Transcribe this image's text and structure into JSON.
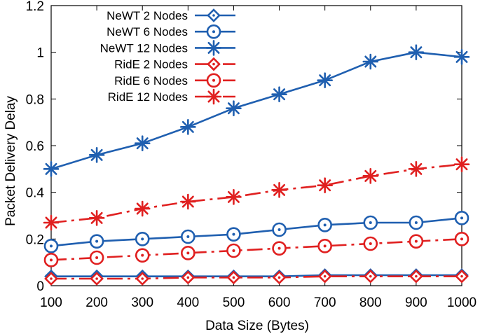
{
  "chart_data": {
    "type": "line",
    "xlabel": "Data Size (Bytes)",
    "ylabel": "Packet Delivery Delay",
    "xlim": [
      100,
      1000
    ],
    "ylim": [
      0,
      1.2
    ],
    "x": [
      100,
      200,
      300,
      400,
      500,
      600,
      700,
      800,
      900,
      1000
    ],
    "xticks": [
      "100",
      "200",
      "300",
      "400",
      "500",
      "600",
      "700",
      "800",
      "900",
      "1000"
    ],
    "yticks": [
      "0",
      "0.2",
      "0.4",
      "0.6",
      "0.8",
      "1",
      "1.2"
    ],
    "legend_position": "top-left",
    "grid": false,
    "series": [
      {
        "name": "NeWT 2 Nodes",
        "color": "#1f5fb0",
        "marker": "diamond-dot",
        "dash": "solid",
        "values": [
          0.04,
          0.04,
          0.04,
          0.04,
          0.04,
          0.04,
          0.045,
          0.045,
          0.045,
          0.045
        ]
      },
      {
        "name": "NeWT 6 Nodes",
        "color": "#1f5fb0",
        "marker": "circle-dot",
        "dash": "solid",
        "values": [
          0.17,
          0.19,
          0.2,
          0.21,
          0.22,
          0.24,
          0.26,
          0.27,
          0.27,
          0.29
        ]
      },
      {
        "name": "NeWT 12 Nodes",
        "color": "#1f5fb0",
        "marker": "star",
        "dash": "solid",
        "values": [
          0.5,
          0.56,
          0.61,
          0.68,
          0.76,
          0.82,
          0.88,
          0.96,
          1.0,
          0.98
        ]
      },
      {
        "name": "RidE 2 Nodes",
        "color": "#e02020",
        "marker": "diamond-dot",
        "dash": "dashed",
        "values": [
          0.03,
          0.03,
          0.03,
          0.035,
          0.035,
          0.035,
          0.04,
          0.04,
          0.04,
          0.04
        ]
      },
      {
        "name": "RidE 6 Nodes",
        "color": "#e02020",
        "marker": "circle-dot",
        "dash": "dashed",
        "values": [
          0.11,
          0.12,
          0.13,
          0.14,
          0.15,
          0.16,
          0.17,
          0.18,
          0.19,
          0.2
        ]
      },
      {
        "name": "RidE 12 Nodes",
        "color": "#e02020",
        "marker": "star",
        "dash": "dashed",
        "values": [
          0.27,
          0.29,
          0.33,
          0.36,
          0.38,
          0.41,
          0.43,
          0.47,
          0.5,
          0.52
        ]
      }
    ]
  }
}
